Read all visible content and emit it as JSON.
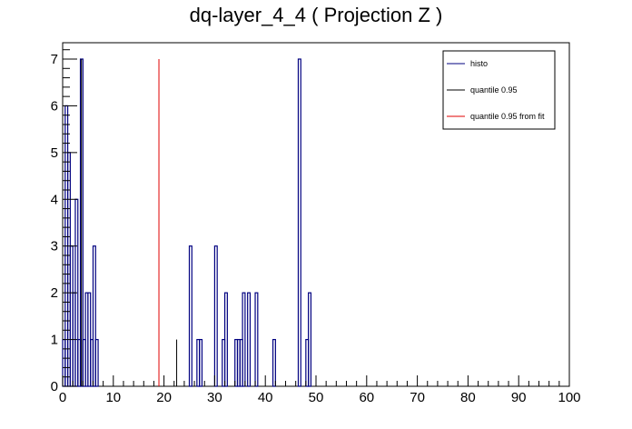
{
  "chart_data": {
    "type": "bar",
    "title": "dq-layer_4_4 ( Projection Z )",
    "xlabel": "",
    "ylabel": "",
    "xlim": [
      0,
      100
    ],
    "ylim": [
      0,
      7.35
    ],
    "x_ticks": [
      0,
      10,
      20,
      30,
      40,
      50,
      60,
      70,
      80,
      90,
      100
    ],
    "y_ticks": [
      0,
      1,
      2,
      3,
      4,
      5,
      6,
      7
    ],
    "grid": false,
    "legend_position": "top-right",
    "bin_width": 0.5,
    "series": [
      {
        "name": "histo",
        "color": "#000080",
        "bins": [
          {
            "x": 0.0,
            "y": 1
          },
          {
            "x": 0.5,
            "y": 6
          },
          {
            "x": 1.0,
            "y": 5
          },
          {
            "x": 1.5,
            "y": 3
          },
          {
            "x": 2.0,
            "y": 2
          },
          {
            "x": 2.5,
            "y": 4
          },
          {
            "x": 3.0,
            "y": 1
          },
          {
            "x": 3.5,
            "y": 7
          },
          {
            "x": 4.0,
            "y": 1
          },
          {
            "x": 4.5,
            "y": 2
          },
          {
            "x": 5.0,
            "y": 2
          },
          {
            "x": 5.5,
            "y": 1
          },
          {
            "x": 6.0,
            "y": 3
          },
          {
            "x": 6.5,
            "y": 1
          },
          {
            "x": 25.0,
            "y": 3
          },
          {
            "x": 26.5,
            "y": 1
          },
          {
            "x": 27.0,
            "y": 1
          },
          {
            "x": 30.0,
            "y": 3
          },
          {
            "x": 31.5,
            "y": 1
          },
          {
            "x": 32.0,
            "y": 2
          },
          {
            "x": 34.0,
            "y": 1
          },
          {
            "x": 34.5,
            "y": 1
          },
          {
            "x": 35.0,
            "y": 1
          },
          {
            "x": 35.5,
            "y": 2
          },
          {
            "x": 36.5,
            "y": 2
          },
          {
            "x": 38.0,
            "y": 2
          },
          {
            "x": 41.5,
            "y": 1
          },
          {
            "x": 46.5,
            "y": 7
          },
          {
            "x": 48.0,
            "y": 1
          },
          {
            "x": 48.5,
            "y": 2
          }
        ]
      },
      {
        "name": "quantile 0.95",
        "color": "#000000",
        "lines": [
          {
            "x": 3.7,
            "y": 7
          },
          {
            "x": 22.5,
            "y": 1
          }
        ]
      },
      {
        "name": "quantile 0.95 from fit",
        "color": "#e00000",
        "lines": [
          {
            "x": 19.0,
            "y": 7
          }
        ]
      }
    ]
  }
}
